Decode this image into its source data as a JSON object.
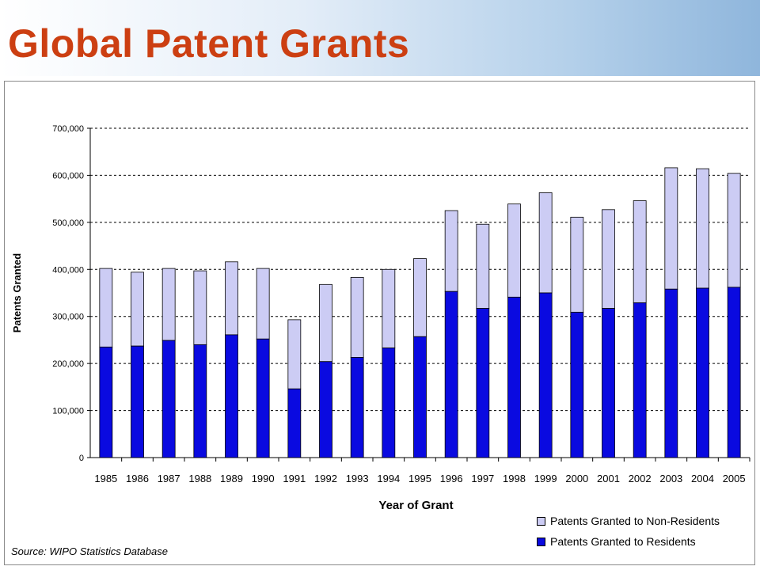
{
  "page": {
    "title": "Global Patent Grants"
  },
  "source": "Source: WIPO Statistics Database",
  "colors": {
    "title": "#cc3f12",
    "residents": "#0a0ae0",
    "non_residents": "#ccccf4"
  },
  "chart_data": {
    "type": "bar",
    "stacked": true,
    "xlabel": "Year of Grant",
    "ylabel": "Patents Granted",
    "ylim": [
      0,
      700000
    ],
    "yticks": [
      "0",
      "100,000",
      "200,000",
      "300,000",
      "400,000",
      "500,000",
      "600,000",
      "700,000"
    ],
    "grid": true,
    "legend_position": "bottom-right",
    "categories": [
      "1985",
      "1986",
      "1987",
      "1988",
      "1989",
      "1990",
      "1991",
      "1992",
      "1993",
      "1994",
      "1995",
      "1996",
      "1997",
      "1998",
      "1999",
      "2000",
      "2001",
      "2002",
      "2003",
      "2004",
      "2005"
    ],
    "series": [
      {
        "name": "Patents Granted to Residents",
        "color": "#0a0ae0",
        "values": [
          235000,
          237000,
          249000,
          240000,
          261000,
          252000,
          146000,
          204000,
          213000,
          233000,
          257000,
          353000,
          317000,
          341000,
          350000,
          309000,
          317000,
          329000,
          358000,
          360000,
          362000
        ]
      },
      {
        "name": "Patents Granted to Non-Residents",
        "color": "#ccccf4",
        "values": [
          167000,
          157000,
          153000,
          157000,
          155000,
          150000,
          147000,
          164000,
          170000,
          167000,
          166000,
          172000,
          179000,
          198000,
          213000,
          202000,
          210000,
          217000,
          258000,
          254000,
          242000
        ]
      }
    ]
  }
}
